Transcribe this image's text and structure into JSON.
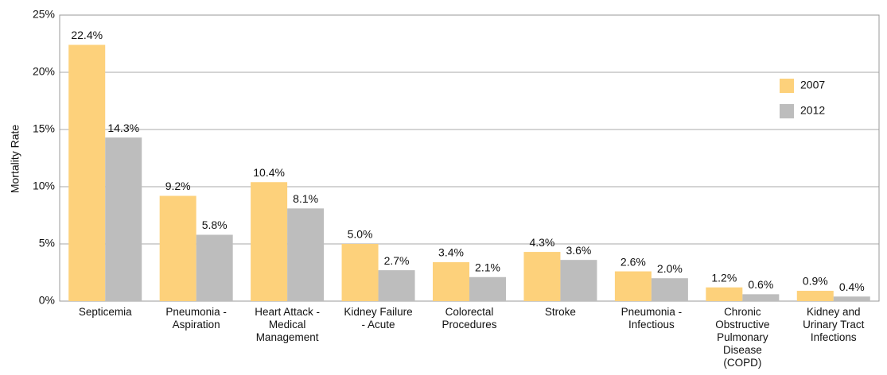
{
  "chart_data": {
    "type": "bar",
    "y_label": "Mortality Rate",
    "categories": [
      "Septicemia",
      "Pneumonia - Aspiration",
      "Heart Attack - Medical Management",
      "Kidney Failure - Acute",
      "Colorectal Procedures",
      "Stroke",
      "Pneumonia - Infectious",
      "Chronic Obstructive Pulmonary Disease (COPD)",
      "Kidney and Urinary Tract Infections"
    ],
    "series": [
      {
        "name": "2007",
        "color": "#fdd17b",
        "values": [
          22.4,
          9.2,
          10.4,
          5.0,
          3.4,
          4.3,
          2.6,
          1.2,
          0.9
        ],
        "value_labels": [
          "22.4%",
          "9.2%",
          "10.4%",
          "5.0%",
          "3.4%",
          "4.3%",
          "2.6%",
          "1.2%",
          "0.9%"
        ]
      },
      {
        "name": "2012",
        "color": "#bdbdbd",
        "values": [
          14.3,
          5.8,
          8.1,
          2.7,
          2.1,
          3.6,
          2.0,
          0.6,
          0.4
        ],
        "value_labels": [
          "14.3%",
          "5.8%",
          "8.1%",
          "2.7%",
          "2.1%",
          "3.6%",
          "2.0%",
          "0.6%",
          "0.4%"
        ]
      }
    ],
    "ylim": [
      0,
      25
    ],
    "yticks": [
      {
        "value": 0,
        "label": "0%"
      },
      {
        "value": 5,
        "label": "5%"
      },
      {
        "value": 10,
        "label": "10%"
      },
      {
        "value": 15,
        "label": "15%"
      },
      {
        "value": 20,
        "label": "20%"
      },
      {
        "value": 25,
        "label": "25%"
      }
    ],
    "grid": true,
    "legend": "upper right"
  }
}
